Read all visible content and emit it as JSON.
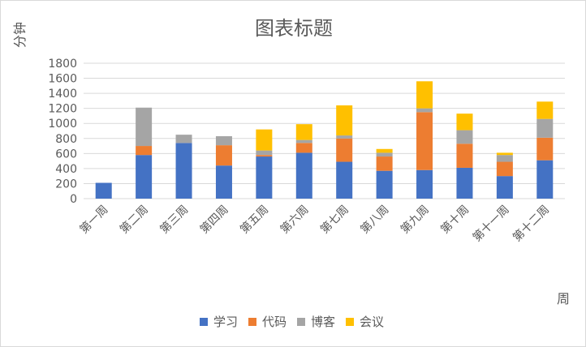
{
  "chart_data": {
    "type": "bar",
    "stacked": true,
    "title": "图表标题",
    "ylabel": "分钟",
    "xlabel": "周",
    "ylim": [
      0,
      1800
    ],
    "yticks": [
      0,
      200,
      400,
      600,
      800,
      1000,
      1200,
      1400,
      1600,
      1800
    ],
    "grid": true,
    "legend_position": "bottom",
    "categories": [
      "第一周",
      "第二周",
      "第三周",
      "第四周",
      "第五周",
      "第六周",
      "第七周",
      "第八周",
      "第九周",
      "第十周",
      "第十一周",
      "第十二周"
    ],
    "series": [
      {
        "name": "学习",
        "color": "#4472c4",
        "values": [
          210,
          580,
          740,
          440,
          560,
          610,
          490,
          370,
          380,
          410,
          300,
          510
        ]
      },
      {
        "name": "代码",
        "color": "#ed7d31",
        "values": [
          0,
          120,
          0,
          270,
          20,
          130,
          310,
          190,
          770,
          320,
          190,
          300
        ]
      },
      {
        "name": "博客",
        "color": "#a5a5a5",
        "values": [
          0,
          510,
          110,
          120,
          60,
          40,
          40,
          50,
          50,
          180,
          90,
          250
        ]
      },
      {
        "name": "会议",
        "color": "#ffc000",
        "values": [
          0,
          0,
          0,
          0,
          280,
          210,
          400,
          50,
          360,
          220,
          30,
          230
        ]
      }
    ]
  }
}
